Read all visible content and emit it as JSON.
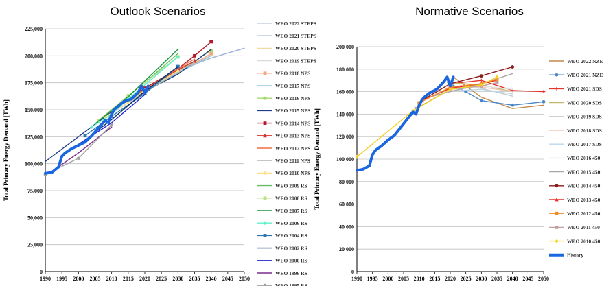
{
  "chart_data": [
    {
      "type": "line",
      "title": "Outlook Scenarios",
      "ylabel": "Total Primary Energy Demand [TWh]",
      "xlabel": "",
      "xlim": [
        1990,
        2050
      ],
      "ylim": [
        0,
        225000
      ],
      "xticks": [
        1990,
        1995,
        2000,
        2005,
        2010,
        2015,
        2020,
        2025,
        2030,
        2035,
        2040,
        2045,
        2050
      ],
      "xtick_labels": [
        "1990",
        "1995",
        "2000",
        "2005",
        "2010",
        "2015",
        "2020",
        "2025",
        "2030",
        "2035",
        "2040",
        "2045",
        "2050"
      ],
      "yticks": [
        0,
        25000,
        50000,
        75000,
        100000,
        125000,
        150000,
        175000,
        200000,
        225000
      ],
      "ytick_labels": [
        "0",
        "25,000",
        "50,000",
        "75,000",
        "100,000",
        "125,000",
        "150,000",
        "175,000",
        "200,000",
        "225,000"
      ],
      "grid": "horizontal",
      "legend_position": "right",
      "series": [
        {
          "name": "WEO 2022 STEPS",
          "color": "#c9cfe3",
          "marker": "none",
          "x": [
            2021,
            2030,
            2040,
            2050
          ],
          "y": [
            170000,
            187000,
            198000,
            207000
          ]
        },
        {
          "name": "WEO 2021 STEPS",
          "color": "#9fb3d6",
          "marker": "none",
          "x": [
            2020,
            2030,
            2040,
            2050
          ],
          "y": [
            167000,
            186000,
            198000,
            207000
          ]
        },
        {
          "name": "WEO 2020 STEPS",
          "color": "#f3d9a6",
          "marker": "none",
          "x": [
            2019,
            2030,
            2040
          ],
          "y": [
            168000,
            188000,
            200000
          ]
        },
        {
          "name": "WEO 2019 STEPS",
          "color": "#d9d9d9",
          "marker": "none",
          "x": [
            2018,
            2025,
            2030,
            2040
          ],
          "y": [
            165000,
            178000,
            186000,
            200000
          ]
        },
        {
          "name": "WEO 2018 NPS",
          "color": "#f4a582",
          "marker": "square",
          "x": [
            2017,
            2025,
            2030,
            2035,
            2040
          ],
          "y": [
            163000,
            177000,
            186000,
            193000,
            202000
          ]
        },
        {
          "name": "WEO 2017 NPS",
          "color": "#92c5de",
          "marker": "none",
          "x": [
            2016,
            2025,
            2030,
            2035,
            2040
          ],
          "y": [
            160000,
            175000,
            184000,
            192000,
            200000
          ]
        },
        {
          "name": "WEO 2016 NPS",
          "color": "#a6d96a",
          "marker": "square",
          "x": [
            2014,
            2020,
            2030,
            2040
          ],
          "y": [
            158000,
            168000,
            185000,
            205000
          ]
        },
        {
          "name": "WEO 2015 NPS",
          "color": "#1f3b8a",
          "marker": "none",
          "x": [
            1990,
            2013,
            2020,
            2030,
            2040
          ],
          "y": [
            102000,
            155000,
            167000,
            183000,
            206000
          ]
        },
        {
          "name": "WEO 2014 NPS",
          "color": "#b2182b",
          "marker": "square",
          "x": [
            2012,
            2020,
            2030,
            2035,
            2040
          ],
          "y": [
            154000,
            170000,
            188000,
            200000,
            213000
          ]
        },
        {
          "name": "WEO 2013 NPS",
          "color": "#d73027",
          "marker": "triangle",
          "x": [
            2011,
            2020,
            2030,
            2035
          ],
          "y": [
            152000,
            168000,
            187000,
            195000
          ]
        },
        {
          "name": "WEO 2012 NPS",
          "color": "#f46d43",
          "marker": "none",
          "x": [
            2010,
            2020,
            2030,
            2035
          ],
          "y": [
            150000,
            169000,
            188000,
            197000
          ]
        },
        {
          "name": "WEO 2011 NPS",
          "color": "#bdbdbd",
          "marker": "none",
          "x": [
            2009,
            2020,
            2030,
            2035
          ],
          "y": [
            145000,
            166000,
            185000,
            194000
          ]
        },
        {
          "name": "WEO 2010 NPS",
          "color": "#fee08b",
          "marker": "diamond",
          "x": [
            2008,
            2015,
            2020,
            2030
          ],
          "y": [
            143000,
            157000,
            168000,
            186000
          ]
        },
        {
          "name": "WEO 2009 RS",
          "color": "#66bd63",
          "marker": "none",
          "x": [
            2007,
            2015,
            2020,
            2030
          ],
          "y": [
            142000,
            163000,
            175000,
            202000
          ]
        },
        {
          "name": "WEO 2008 RS",
          "color": "#b8e186",
          "marker": "square",
          "x": [
            2006,
            2015,
            2030
          ],
          "y": [
            140000,
            163000,
            199000
          ]
        },
        {
          "name": "WEO 2007 RS",
          "color": "#1a9641",
          "marker": "none",
          "x": [
            2005,
            2015,
            2030
          ],
          "y": [
            137000,
            162000,
            206000
          ]
        },
        {
          "name": "WEO 2006 RS",
          "color": "#5ef0c8",
          "marker": "diamond",
          "x": [
            2004,
            2010,
            2015,
            2030
          ],
          "y": [
            134000,
            146000,
            160000,
            199000
          ]
        },
        {
          "name": "WEO 2004 RS",
          "color": "#2e75b6",
          "marker": "square",
          "x": [
            2002,
            2010,
            2020,
            2030
          ],
          "y": [
            126000,
            144000,
            165000,
            190000
          ]
        },
        {
          "name": "WEO 2002 RS",
          "color": "#08306b",
          "marker": "none",
          "x": [
            2000,
            2010,
            2020,
            2030
          ],
          "y": [
            117000,
            141000,
            167000,
            190000
          ]
        },
        {
          "name": "WEO 2000 RS",
          "color": "#2020d0",
          "marker": "none",
          "x": [
            1997,
            2010,
            2020
          ],
          "y": [
            112000,
            138000,
            164000
          ]
        },
        {
          "name": "WEO 1996 RS",
          "color": "#7b2d8b",
          "marker": "none",
          "x": [
            1993,
            2000,
            2010
          ],
          "y": [
            95000,
            110000,
            134000
          ]
        },
        {
          "name": "WEO 1995 RS",
          "color": "#a0a0a0",
          "marker": "circle",
          "x": [
            1990,
            2000,
            2010
          ],
          "y": [
            90000,
            105000,
            136000
          ]
        },
        {
          "name": "History",
          "color": "#1a66e0",
          "marker": "none",
          "legend": false,
          "width": 4,
          "x": [
            1990,
            1992,
            1994,
            1995,
            1996,
            1998,
            2000,
            2002,
            2004,
            2006,
            2008,
            2009,
            2010,
            2011,
            2012,
            2013,
            2014,
            2015,
            2016,
            2017,
            2018,
            2019,
            2020,
            2021
          ],
          "y": [
            91000,
            92000,
            97000,
            107000,
            110000,
            114000,
            117000,
            120000,
            126000,
            133000,
            140000,
            138000,
            146000,
            151000,
            153000,
            156000,
            158000,
            159000,
            160000,
            163000,
            166000,
            172000,
            166000,
            172000
          ]
        }
      ]
    },
    {
      "type": "line",
      "title": "Normative Scenarios",
      "ylabel": "Total Primary Energy Demand [TWh]",
      "xlabel": "",
      "xlim": [
        1990,
        2050
      ],
      "ylim": [
        0,
        200000
      ],
      "xticks": [
        1990,
        1995,
        2000,
        2005,
        2010,
        2015,
        2020,
        2025,
        2030,
        2035,
        2040,
        2045,
        2050
      ],
      "xtick_labels": [
        "1990",
        "1995",
        "2000",
        "2005",
        "2010",
        "2015",
        "2020",
        "2025",
        "2030",
        "2035",
        "2040",
        "2045",
        "2050"
      ],
      "yticks": [
        0,
        20000,
        40000,
        60000,
        80000,
        100000,
        120000,
        140000,
        160000,
        180000,
        200000
      ],
      "ytick_labels": [
        "0",
        "20 000",
        "40 000",
        "60 000",
        "80 000",
        "100 000",
        "120 000",
        "140 000",
        "160 000",
        "180 000",
        "200 000"
      ],
      "grid": "horizontal",
      "legend_position": "right",
      "series": [
        {
          "name": "WEO 2022 NZE",
          "color": "#c08a4a",
          "marker": "none",
          "x": [
            2021,
            2025,
            2030,
            2040,
            2050
          ],
          "y": [
            173000,
            165000,
            155000,
            145000,
            148000
          ]
        },
        {
          "name": "WEO 2021 NZE",
          "color": "#4a86c8",
          "marker": "circle",
          "x": [
            2020,
            2025,
            2030,
            2040,
            2050
          ],
          "y": [
            167000,
            160000,
            152000,
            148000,
            151000
          ]
        },
        {
          "name": "WEO 2021 SDS",
          "color": "#e8322a",
          "marker": "plus",
          "x": [
            2020,
            2030,
            2040,
            2050
          ],
          "y": [
            167000,
            170000,
            161000,
            160000
          ]
        },
        {
          "name": "WEO 2020 SDS",
          "color": "#c2b86a",
          "marker": "none",
          "x": [
            2019,
            2030,
            2040
          ],
          "y": [
            168000,
            166000,
            160000
          ]
        },
        {
          "name": "WEO 2019 SDS",
          "color": "#c8c8c8",
          "marker": "none",
          "x": [
            2018,
            2030,
            2040
          ],
          "y": [
            165000,
            163000,
            156000
          ]
        },
        {
          "name": "WEO 2018 SDS",
          "color": "#f0c8b8",
          "marker": "none",
          "x": [
            2017,
            2030,
            2040
          ],
          "y": [
            163000,
            164000,
            160000
          ]
        },
        {
          "name": "WEO 2017 SDS",
          "color": "#b8d8e8",
          "marker": "none",
          "x": [
            2016,
            2030,
            2040
          ],
          "y": [
            160000,
            162000,
            158000
          ]
        },
        {
          "name": "WEO 2016 450",
          "color": "#e0e0e0",
          "marker": "none",
          "x": [
            2014,
            2030,
            2040
          ],
          "y": [
            158000,
            165000,
            162000
          ]
        },
        {
          "name": "WEO 2015 450",
          "color": "#a8a8a8",
          "marker": "none",
          "x": [
            2013,
            2030,
            2040
          ],
          "y": [
            155000,
            167000,
            176000
          ]
        },
        {
          "name": "WEO 2014 450",
          "color": "#8b1a1a",
          "marker": "circle",
          "x": [
            2012,
            2020,
            2030,
            2040
          ],
          "y": [
            154000,
            167000,
            174000,
            182000
          ]
        },
        {
          "name": "WEO 2013 450",
          "color": "#e8322a",
          "marker": "triangle",
          "x": [
            2011,
            2020,
            2030,
            2035
          ],
          "y": [
            152000,
            163000,
            167000,
            170000
          ]
        },
        {
          "name": "WEO 2012 450",
          "color": "#f08a2a",
          "marker": "square",
          "x": [
            2010,
            2020,
            2030,
            2035
          ],
          "y": [
            150000,
            164000,
            167000,
            171000
          ]
        },
        {
          "name": "WEO 2011 450",
          "color": "#c0a0a0",
          "marker": "square",
          "x": [
            2009,
            2020,
            2030,
            2035
          ],
          "y": [
            145000,
            162000,
            165000,
            168000
          ]
        },
        {
          "name": "WEO 2010 450",
          "color": "#f5d020",
          "marker": "diamond",
          "x": [
            1990,
            2008,
            2020,
            2030,
            2035
          ],
          "y": [
            102000,
            143000,
            162000,
            166000,
            173000
          ]
        },
        {
          "name": "History",
          "color": "#1a66e0",
          "marker": "none",
          "width": 4,
          "x": [
            1990,
            1992,
            1994,
            1995,
            1996,
            1998,
            2000,
            2002,
            2004,
            2006,
            2008,
            2009,
            2010,
            2011,
            2012,
            2013,
            2014,
            2015,
            2016,
            2017,
            2018,
            2019,
            2020,
            2021
          ],
          "y": [
            90000,
            91000,
            94000,
            104000,
            108000,
            112000,
            117000,
            121000,
            128000,
            135000,
            142000,
            140000,
            148000,
            153000,
            156000,
            158000,
            160000,
            161000,
            163000,
            166000,
            169000,
            173000,
            165000,
            173000
          ]
        }
      ]
    }
  ]
}
